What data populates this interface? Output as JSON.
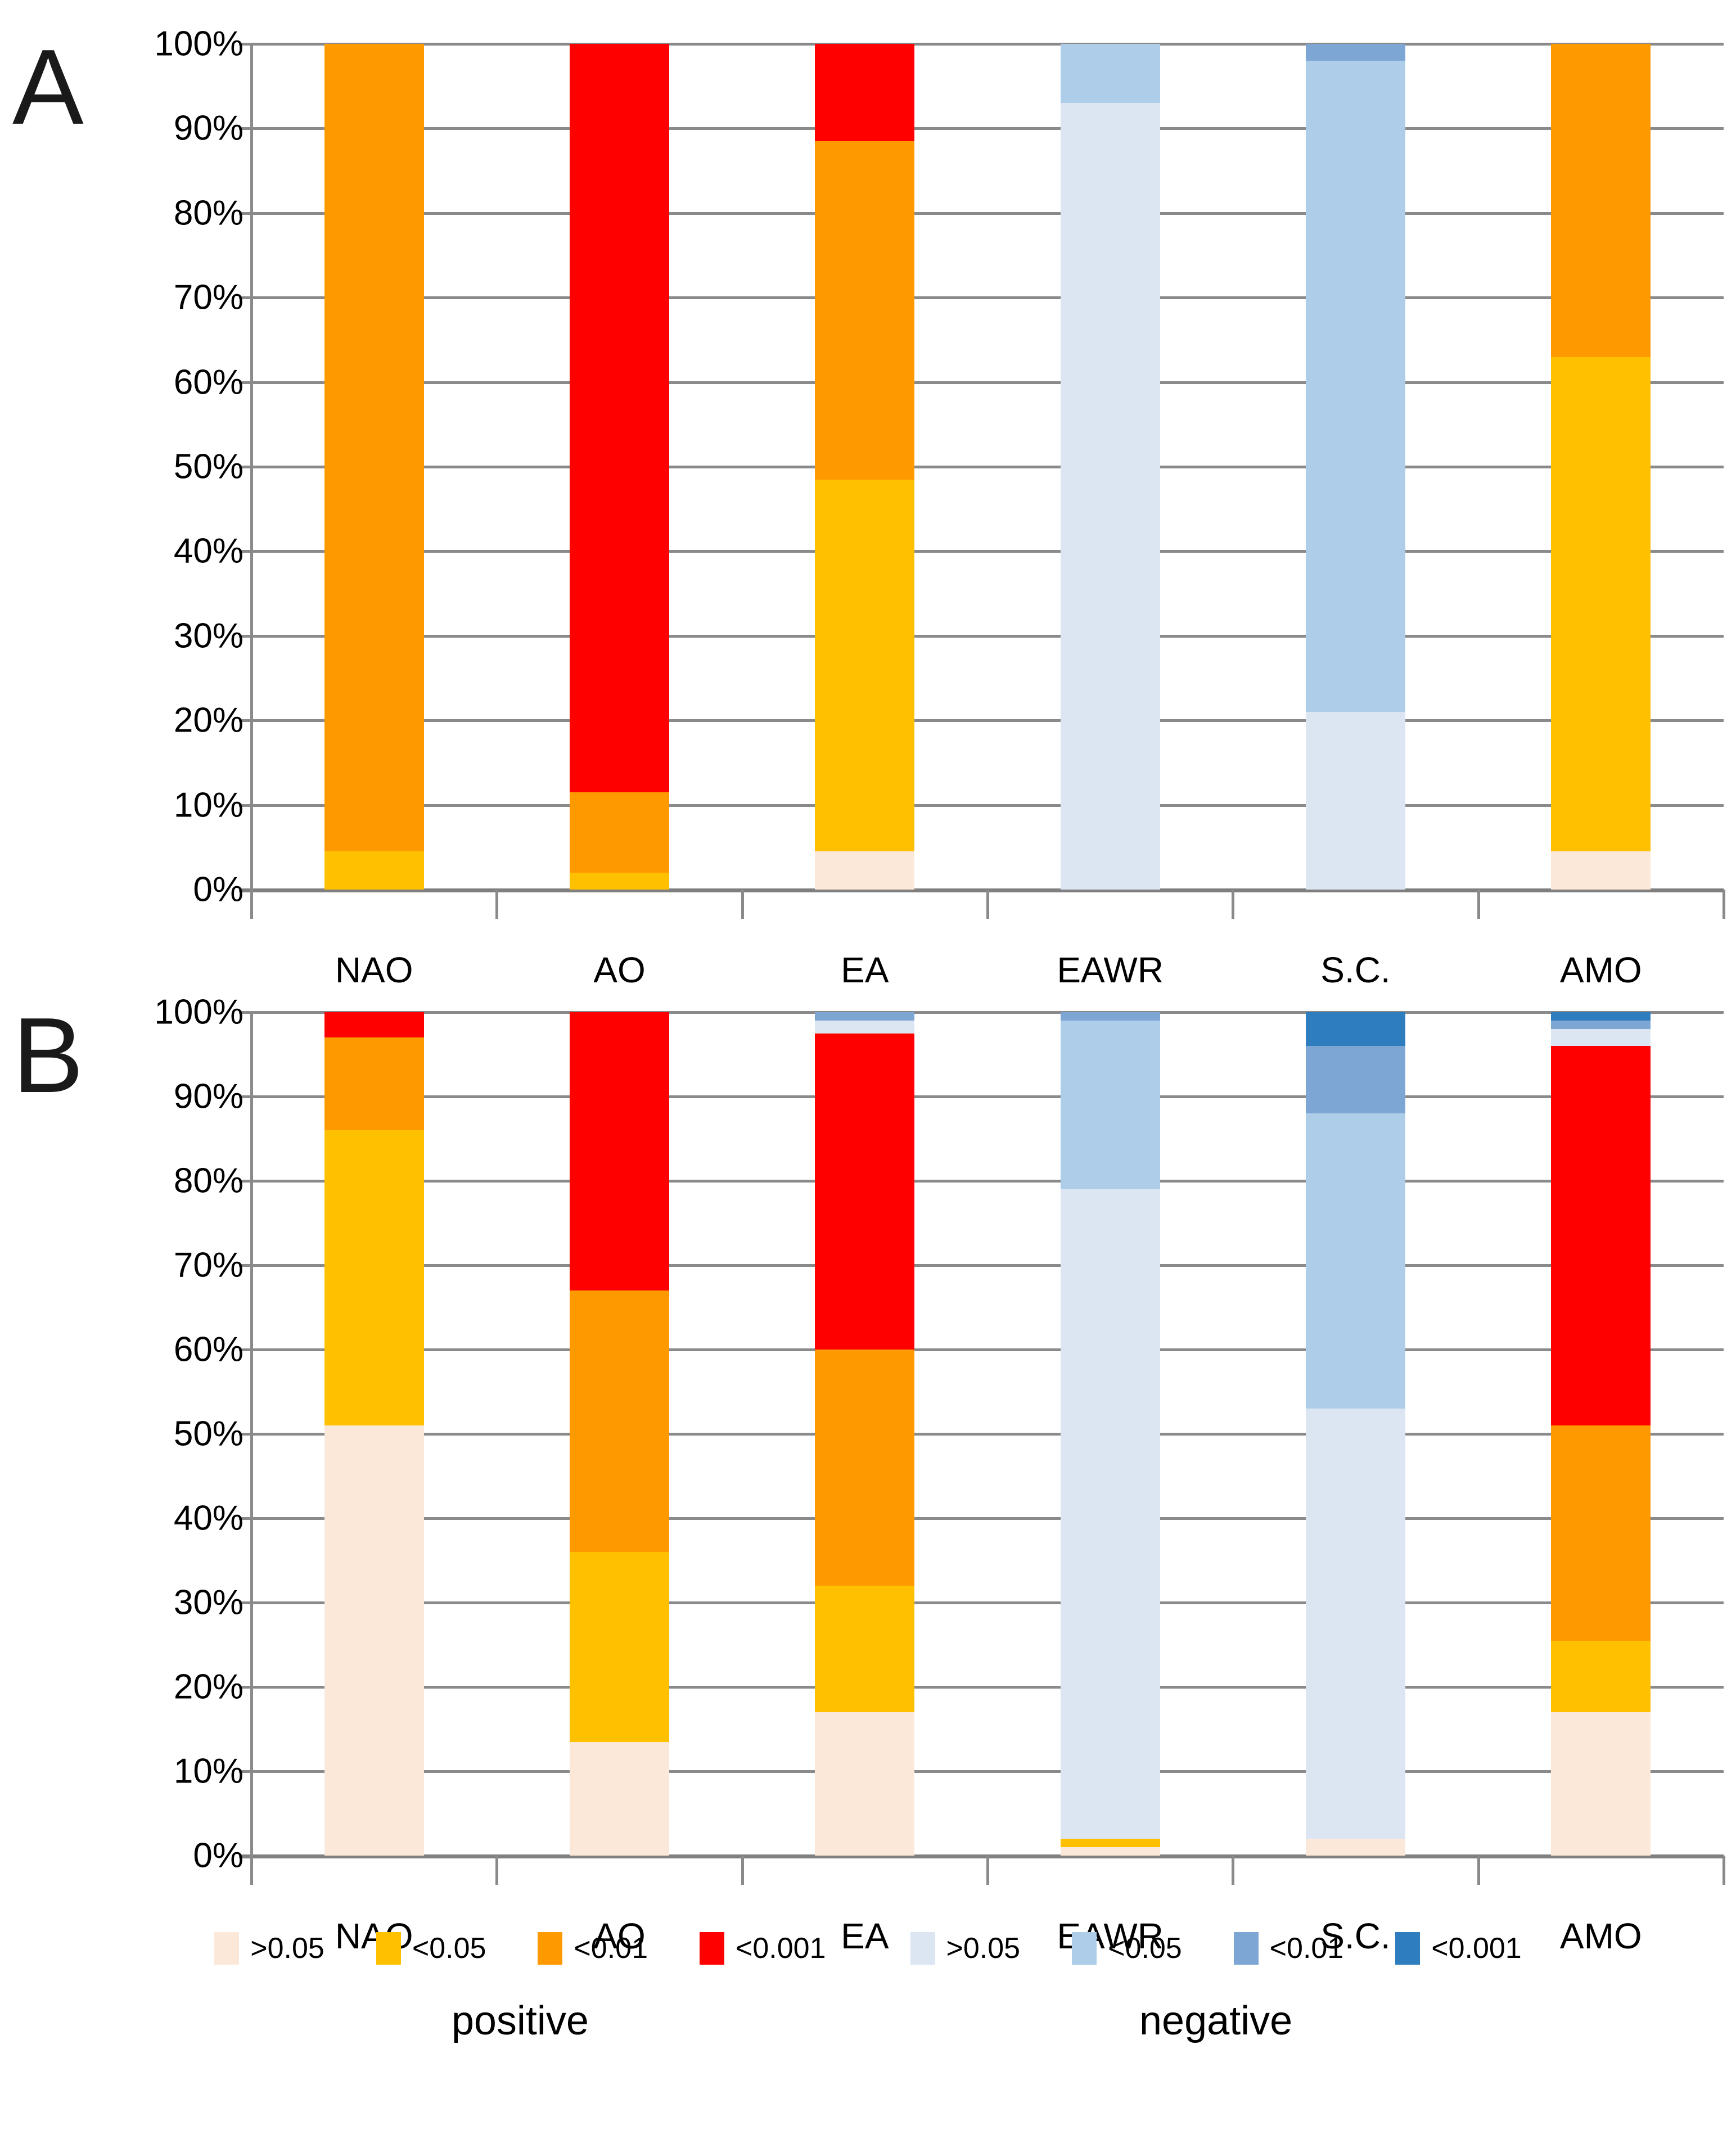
{
  "figure_title": "",
  "axis": {
    "yticks": [
      "0%",
      "10%",
      "20%",
      "30%",
      "40%",
      "50%",
      "60%",
      "70%",
      "80%",
      "90%",
      "100%"
    ],
    "ylim": [
      0,
      100
    ],
    "grid": true
  },
  "panels": [
    {
      "letter": "A"
    },
    {
      "letter": "B"
    }
  ],
  "legend": {
    "groups": [
      {
        "caption": "positive",
        "items": [
          {
            "label": ">0.05",
            "color": "#FCE8D9"
          },
          {
            "label": "<0.05",
            "color": "#FFC000"
          },
          {
            "label": "<0.01",
            "color": "#FF9900"
          },
          {
            "label": "<0.001",
            "color": "#FF0000"
          }
        ]
      },
      {
        "caption": "negative",
        "items": [
          {
            "label": ">0.05",
            "color": "#DCE6F2"
          },
          {
            "label": "<0.05",
            "color": "#AECDE8"
          },
          {
            "label": "<0.01",
            "color": "#7EA6D4"
          },
          {
            "label": "<0.001",
            "color": "#2E7EBF"
          }
        ]
      }
    ]
  },
  "chart_data": [
    {
      "type": "bar",
      "stacked": true,
      "units": "percent",
      "panel": "A",
      "title": "",
      "xlabel": "",
      "ylabel": "",
      "ylim": [
        0,
        100
      ],
      "yticks_percent": [
        0,
        10,
        20,
        30,
        40,
        50,
        60,
        70,
        80,
        90,
        100
      ],
      "categories": [
        "NAO",
        "AO",
        "EA",
        "EAWR",
        "S.C.",
        "AMO"
      ],
      "series": [
        {
          "name": "positive >0.05",
          "group": "positive",
          "color": "#FCE8D9",
          "values": [
            0,
            0,
            4.5,
            0,
            0,
            4.5
          ]
        },
        {
          "name": "positive <0.05",
          "group": "positive",
          "color": "#FFC000",
          "values": [
            4.5,
            2,
            44,
            0,
            0,
            58.5
          ]
        },
        {
          "name": "positive <0.01",
          "group": "positive",
          "color": "#FF9900",
          "values": [
            95.5,
            9.5,
            40,
            0,
            0,
            37
          ]
        },
        {
          "name": "positive <0.001",
          "group": "positive",
          "color": "#FF0000",
          "values": [
            0,
            88.5,
            11.5,
            0,
            0,
            0
          ]
        },
        {
          "name": "negative >0.05",
          "group": "negative",
          "color": "#DCE6F2",
          "values": [
            0,
            0,
            0,
            93,
            21,
            0
          ]
        },
        {
          "name": "negative <0.05",
          "group": "negative",
          "color": "#AECDE8",
          "values": [
            0,
            0,
            0,
            7,
            77,
            0
          ]
        },
        {
          "name": "negative <0.01",
          "group": "negative",
          "color": "#7EA6D4",
          "values": [
            0,
            0,
            0,
            0,
            2,
            0
          ]
        },
        {
          "name": "negative <0.001",
          "group": "negative",
          "color": "#2E7EBF",
          "values": [
            0,
            0,
            0,
            0,
            0,
            0
          ]
        }
      ]
    },
    {
      "type": "bar",
      "stacked": true,
      "units": "percent",
      "panel": "B",
      "title": "",
      "xlabel": "",
      "ylabel": "",
      "ylim": [
        0,
        100
      ],
      "yticks_percent": [
        0,
        10,
        20,
        30,
        40,
        50,
        60,
        70,
        80,
        90,
        100
      ],
      "categories": [
        "NAO",
        "AO",
        "EA",
        "EAWR",
        "S.C.",
        "AMO"
      ],
      "series": [
        {
          "name": "positive >0.05",
          "group": "positive",
          "color": "#FCE8D9",
          "values": [
            51,
            13.5,
            17,
            1,
            2,
            17
          ]
        },
        {
          "name": "positive <0.05",
          "group": "positive",
          "color": "#FFC000",
          "values": [
            35,
            22.5,
            15,
            1,
            0,
            8.5
          ]
        },
        {
          "name": "positive <0.01",
          "group": "positive",
          "color": "#FF9900",
          "values": [
            11,
            31,
            28,
            0,
            0,
            25.5
          ]
        },
        {
          "name": "positive <0.001",
          "group": "positive",
          "color": "#FF0000",
          "values": [
            3,
            33,
            37.5,
            0,
            0,
            45
          ]
        },
        {
          "name": "negative >0.05",
          "group": "negative",
          "color": "#DCE6F2",
          "values": [
            0,
            0,
            1.5,
            77,
            51,
            2
          ]
        },
        {
          "name": "negative <0.05",
          "group": "negative",
          "color": "#AECDE8",
          "values": [
            0,
            0,
            0,
            20,
            35,
            0
          ]
        },
        {
          "name": "negative <0.01",
          "group": "negative",
          "color": "#7EA6D4",
          "values": [
            0,
            0,
            1,
            1,
            8,
            1
          ]
        },
        {
          "name": "negative <0.001",
          "group": "negative",
          "color": "#2E7EBF",
          "values": [
            0,
            0,
            0,
            0,
            4,
            1
          ]
        }
      ]
    }
  ]
}
